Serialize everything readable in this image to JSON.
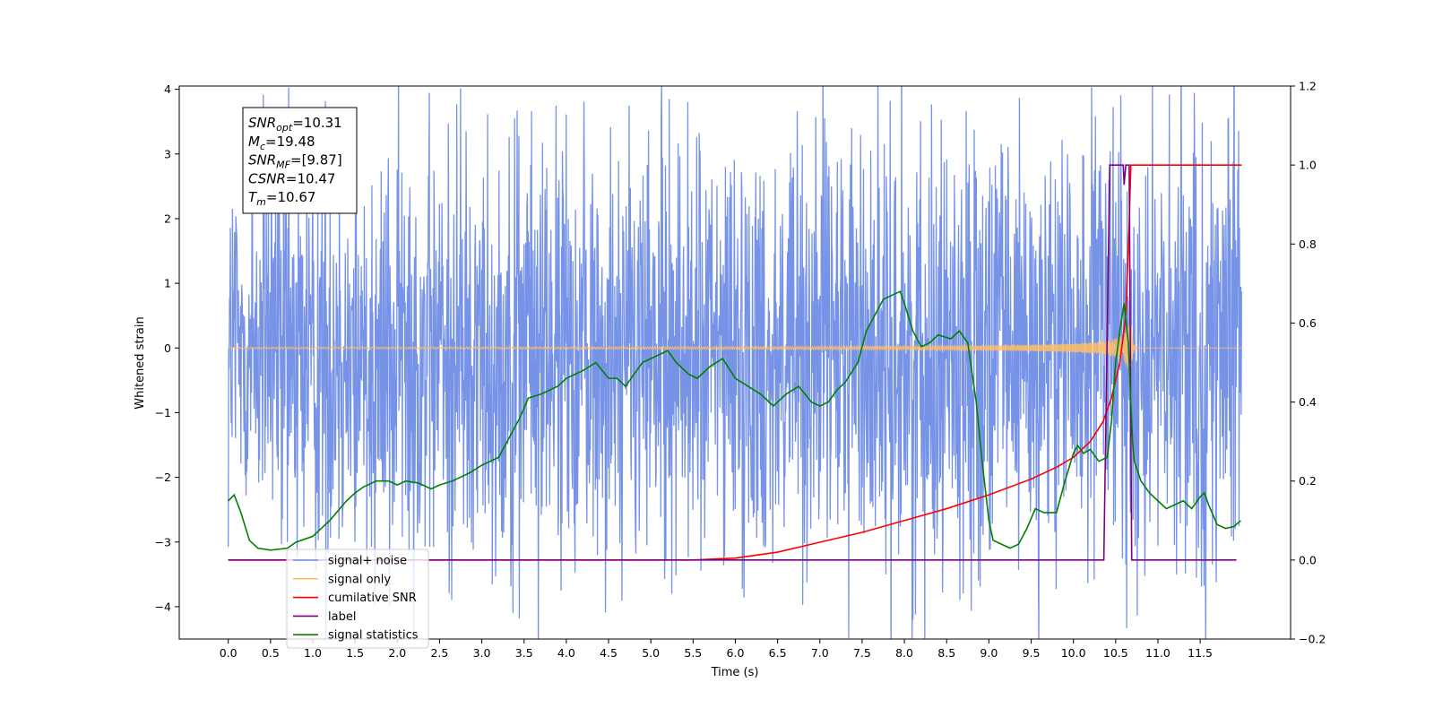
{
  "chart_data": {
    "type": "line",
    "xlabel": "Time (s)",
    "ylabel": "Whitened strain",
    "xlim": [
      -0.58,
      12.57
    ],
    "ylim": [
      -4.5,
      4.05
    ],
    "ylim_right": [
      -0.2,
      1.2
    ],
    "x_ticks": [
      0.0,
      0.5,
      1.0,
      1.5,
      2.0,
      2.5,
      3.0,
      3.5,
      4.0,
      4.5,
      5.0,
      5.5,
      6.0,
      6.5,
      7.0,
      7.5,
      8.0,
      8.5,
      9.0,
      9.5,
      10.0,
      10.5,
      11.0,
      11.5
    ],
    "x_tick_labels": [
      "0.0",
      "0.5",
      "1.0",
      "1.5",
      "2.0",
      "2.5",
      "3.0",
      "3.5",
      "4.0",
      "4.5",
      "5.0",
      "5.5",
      "6.0",
      "6.5",
      "7.0",
      "7.5",
      "8.0",
      "8.5",
      "9.0",
      "9.5",
      "10.0",
      "10.5",
      "11.0",
      "11.5"
    ],
    "y_ticks": [
      -4,
      -3,
      -2,
      -1,
      0,
      1,
      2,
      3,
      4
    ],
    "y_tick_labels": [
      "−4",
      "−3",
      "−2",
      "−1",
      "0",
      "1",
      "2",
      "3",
      "4"
    ],
    "y_right_ticks": [
      -0.2,
      0.0,
      0.2,
      0.4,
      0.6,
      0.8,
      1.0,
      1.2
    ],
    "y_right_tick_labels": [
      "−0.2",
      "0.0",
      "0.2",
      "0.4",
      "0.6",
      "0.8",
      "1.0",
      "1.2"
    ],
    "annotation": {
      "lines": [
        {
          "base": "SNR",
          "sub": "opt",
          "rest": "=10.31"
        },
        {
          "base": "M",
          "sub": "c",
          "rest": "=19.48"
        },
        {
          "base": "SNR",
          "sub": "MF",
          "rest": "=[9.87]"
        },
        {
          "base": "CSNR",
          "sub": "",
          "rest": "=10.47"
        },
        {
          "base": "T",
          "sub": "m",
          "rest": "=10.67"
        }
      ]
    },
    "legend": {
      "position": "lower-left",
      "entries": [
        {
          "label": "signal+ noise",
          "color": "#6f8de6"
        },
        {
          "label": "signal only",
          "color": "#ffbf66"
        },
        {
          "label": "cumilative SNR",
          "color": "#ff0000"
        },
        {
          "label": "label",
          "color": "#800080"
        },
        {
          "label": "signal statistics",
          "color": "#008000"
        }
      ]
    },
    "series": [
      {
        "name": "signal+ noise",
        "axis": "left",
        "color": "#6f8de6",
        "kind": "noise",
        "x_range": [
          0.0,
          11.99
        ],
        "typical_range": [
          -2.4,
          2.3
        ],
        "peaks": [
          [
            3.42,
            3.67
          ],
          [
            7.6,
            3.05
          ],
          [
            9.93,
            3.0
          ],
          [
            11.42,
            3.02
          ],
          [
            11.45,
            2.95
          ],
          [
            7.78,
            -3.5
          ],
          [
            8.13,
            -4.12
          ],
          [
            10.62,
            -3.35
          ],
          [
            11.22,
            -3.5
          ],
          [
            0.7,
            -3.0
          ],
          [
            1.5,
            -3.0
          ]
        ]
      },
      {
        "name": "signal only",
        "axis": "left",
        "color": "#ffbf66",
        "kind": "chirp",
        "t_merger": 10.67,
        "peak_amplitude": 0.92,
        "x_range": [
          0.0,
          11.99
        ]
      },
      {
        "name": "cumilative SNR",
        "axis": "right",
        "color": "#ff0000",
        "x": [
          0.0,
          5.5,
          6.0,
          6.5,
          7.0,
          7.5,
          8.0,
          8.5,
          9.0,
          9.5,
          9.8,
          10.0,
          10.2,
          10.35,
          10.45,
          10.55,
          10.62,
          10.66,
          10.68,
          11.99
        ],
        "y": [
          0.0,
          0.0,
          0.005,
          0.02,
          0.045,
          0.07,
          0.1,
          0.13,
          0.165,
          0.205,
          0.235,
          0.26,
          0.3,
          0.35,
          0.41,
          0.5,
          0.62,
          0.85,
          1.0,
          1.0
        ]
      },
      {
        "name": "label",
        "axis": "right",
        "color": "#800080",
        "x": [
          0.0,
          10.36,
          10.43,
          10.59,
          10.6,
          10.62,
          10.66,
          10.69,
          11.93
        ],
        "y": [
          0.0,
          0.0,
          1.0,
          1.0,
          0.95,
          1.0,
          1.0,
          0.0,
          0.0
        ]
      },
      {
        "name": "signal statistics",
        "axis": "right",
        "color": "#008000",
        "x": [
          0.0,
          0.07,
          0.15,
          0.25,
          0.35,
          0.5,
          0.7,
          0.8,
          1.0,
          1.2,
          1.4,
          1.5,
          1.6,
          1.75,
          1.9,
          2.0,
          2.1,
          2.25,
          2.4,
          2.5,
          2.65,
          2.75,
          2.85,
          3.0,
          3.1,
          3.2,
          3.35,
          3.45,
          3.55,
          3.7,
          3.8,
          3.9,
          4.0,
          4.1,
          4.2,
          4.35,
          4.5,
          4.6,
          4.7,
          4.8,
          4.9,
          5.0,
          5.1,
          5.2,
          5.3,
          5.45,
          5.55,
          5.7,
          5.85,
          6.0,
          6.15,
          6.3,
          6.45,
          6.6,
          6.75,
          6.9,
          7.0,
          7.1,
          7.2,
          7.3,
          7.45,
          7.55,
          7.65,
          7.75,
          7.85,
          7.95,
          8.0,
          8.1,
          8.2,
          8.3,
          8.4,
          8.55,
          8.65,
          8.75,
          8.85,
          8.92,
          9.0,
          9.05,
          9.15,
          9.25,
          9.35,
          9.45,
          9.55,
          9.65,
          9.8,
          9.9,
          10.0,
          10.05,
          10.12,
          10.2,
          10.3,
          10.4,
          10.45,
          10.5,
          10.55,
          10.6,
          10.65,
          10.7,
          10.72,
          10.8,
          10.9,
          11.0,
          11.1,
          11.2,
          11.3,
          11.4,
          11.5,
          11.55,
          11.6,
          11.7,
          11.8,
          11.9,
          11.98
        ],
        "y": [
          0.15,
          0.165,
          0.12,
          0.05,
          0.03,
          0.025,
          0.03,
          0.045,
          0.06,
          0.1,
          0.15,
          0.17,
          0.185,
          0.2,
          0.2,
          0.19,
          0.2,
          0.195,
          0.18,
          0.19,
          0.2,
          0.21,
          0.22,
          0.24,
          0.25,
          0.26,
          0.32,
          0.36,
          0.41,
          0.42,
          0.43,
          0.44,
          0.46,
          0.47,
          0.48,
          0.5,
          0.46,
          0.46,
          0.44,
          0.47,
          0.5,
          0.51,
          0.52,
          0.53,
          0.5,
          0.47,
          0.46,
          0.49,
          0.51,
          0.46,
          0.44,
          0.42,
          0.39,
          0.42,
          0.44,
          0.4,
          0.39,
          0.4,
          0.43,
          0.45,
          0.5,
          0.58,
          0.62,
          0.66,
          0.67,
          0.68,
          0.65,
          0.58,
          0.54,
          0.55,
          0.57,
          0.56,
          0.58,
          0.55,
          0.4,
          0.25,
          0.1,
          0.05,
          0.04,
          0.03,
          0.04,
          0.08,
          0.13,
          0.12,
          0.12,
          0.2,
          0.27,
          0.29,
          0.27,
          0.28,
          0.25,
          0.26,
          0.35,
          0.5,
          0.58,
          0.65,
          0.55,
          0.3,
          0.25,
          0.2,
          0.17,
          0.15,
          0.13,
          0.14,
          0.15,
          0.13,
          0.16,
          0.17,
          0.14,
          0.09,
          0.08,
          0.085,
          0.1
        ]
      }
    ]
  }
}
